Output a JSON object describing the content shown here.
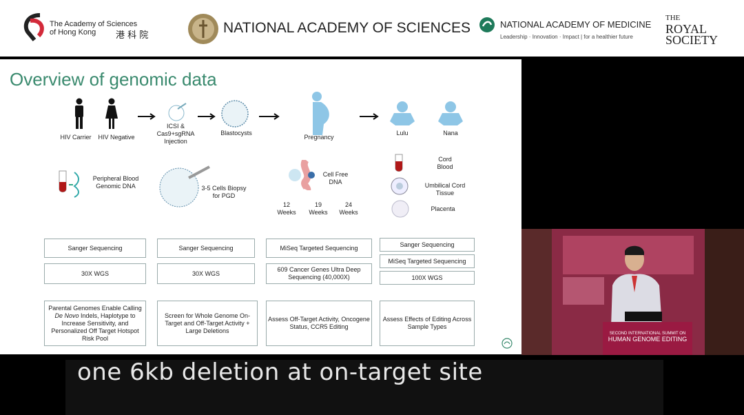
{
  "header": {
    "hk_academy": {
      "line1": "The Academy of Sciences",
      "line2": "of Hong Kong",
      "chinese": "港 科 院"
    },
    "nas": "NATIONAL ACADEMY OF SCIENCES",
    "nam": {
      "name": "NATIONAL ACADEMY OF MEDICINE",
      "tagline": "Leadership · Innovation · Impact | for a healthier future"
    },
    "royal_society": {
      "line1": "THE",
      "line2": "ROYAL",
      "line3": "SOCIETY"
    }
  },
  "slide": {
    "title": "Overview of genomic data",
    "stages": {
      "hiv_carrier": "HIV Carrier",
      "hiv_negative": "HIV Negative",
      "icsi": "ICSI & Cas9+sgRNA Injection",
      "blastocysts": "Blastocysts",
      "pregnancy": "Pregnancy",
      "lulu": "Lulu",
      "nana": "Nana"
    },
    "samples": {
      "peripheral": "Peripheral Blood Genomic DNA",
      "biopsy": "3-5 Cells Biopsy for PGD",
      "cell_free": "Cell Free DNA",
      "weeks": [
        "12 Weeks",
        "19 Weeks",
        "24 Weeks"
      ],
      "cord_blood": "Cord Blood",
      "umbilical": "Umbilical Cord Tissue",
      "placenta": "Placenta"
    },
    "columns": [
      {
        "seq": "Sanger Sequencing",
        "wgs": "30X WGS",
        "desc_pre": "Parental Genomes Enable Calling ",
        "desc_em": "De Novo",
        "desc_post": " Indels, Haplotype to Increase Sensitivity, and Personalized Off Target Hotspot Risk Pool"
      },
      {
        "seq": "Sanger Sequencing",
        "wgs": "30X WGS",
        "desc": "Screen for Whole Genome On-Target and Off-Target Activity + Large Deletions"
      },
      {
        "seq": "MiSeq Targeted Sequencing",
        "wgs": "609 Cancer Genes Ultra Deep Sequencing (40,000X)",
        "desc": "Assess Off-Target Activity, Oncogene Status, CCR5 Editing"
      },
      {
        "seq": "Sanger Sequencing",
        "seq2": "MiSeq Targeted Sequencing",
        "wgs": "100X WGS",
        "desc": "Assess Effects of Editing Across Sample Types"
      }
    ]
  },
  "video": {
    "banner_line1": "SECOND INTERNATIONAL SUMMIT ON",
    "banner_line2": "HUMAN GENOME EDITING"
  },
  "subtitle": "one 6kb deletion at on-target site",
  "colors": {
    "title_green": "#3a8a6e",
    "baby_blue": "#8ec6e6",
    "video_maroon": "#7a2a3a"
  }
}
